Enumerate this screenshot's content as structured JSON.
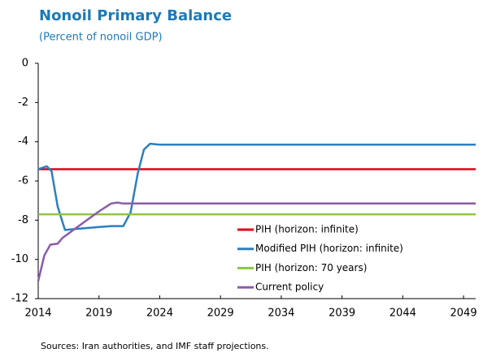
{
  "chart_data": {
    "type": "line",
    "title": "Nonoil Primary Balance",
    "subtitle": "(Percent of nonoil GDP)",
    "source": "Sources: Iran authorities, and IMF staff projections.",
    "xlim": [
      2014,
      2050
    ],
    "xticks": [
      2014,
      2019,
      2024,
      2029,
      2034,
      2039,
      2044,
      2049
    ],
    "ylim": [
      -12,
      0
    ],
    "yticks": [
      0,
      -2,
      -4,
      -6,
      -8,
      -10,
      -12
    ],
    "legend": "lower right",
    "series": [
      {
        "name": "PIH (horizon: infinite)",
        "color": "#e2001a",
        "x": [
          2014,
          2050
        ],
        "values": [
          -5.4,
          -5.4
        ]
      },
      {
        "name": "Modified PIH (horizon: infinite)",
        "color": "#2b7fc0",
        "x": [
          2014,
          2014.7,
          2015.1,
          2015.6,
          2016.2,
          2017,
          2018,
          2019,
          2020,
          2021,
          2021.6,
          2022.2,
          2022.7,
          2023.2,
          2024,
          2050
        ],
        "values": [
          -5.4,
          -5.25,
          -5.5,
          -7.3,
          -8.5,
          -8.45,
          -8.4,
          -8.35,
          -8.3,
          -8.3,
          -7.6,
          -5.6,
          -4.4,
          -4.1,
          -4.15,
          -4.15
        ]
      },
      {
        "name": "PIH (horizon: 70 years)",
        "color": "#8dc63f",
        "x": [
          2014,
          2050
        ],
        "values": [
          -7.7,
          -7.7
        ]
      },
      {
        "name": "Current policy",
        "color": "#8b5ba8",
        "x": [
          2014,
          2014.5,
          2015,
          2015.6,
          2016,
          2017,
          2018,
          2019,
          2020,
          2020.5,
          2021,
          2050
        ],
        "values": [
          -11.1,
          -9.8,
          -9.25,
          -9.2,
          -8.9,
          -8.45,
          -8.0,
          -7.55,
          -7.15,
          -7.1,
          -7.15,
          -7.15
        ]
      }
    ]
  }
}
